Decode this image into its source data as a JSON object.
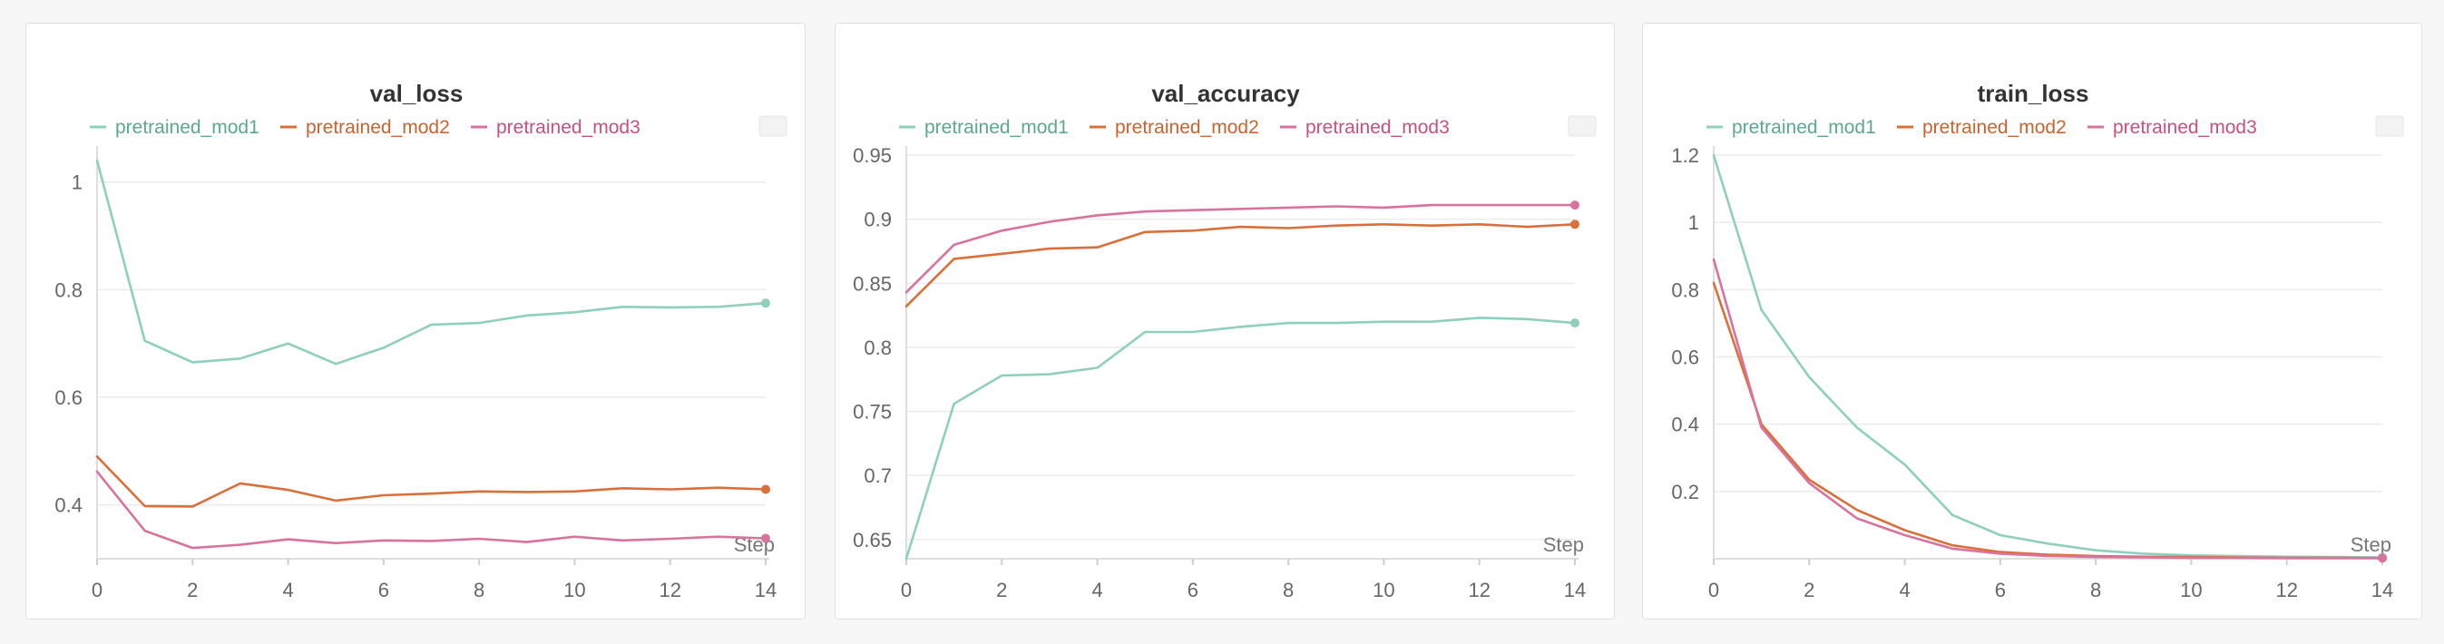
{
  "colors": {
    "pretrained_mod1": "#8fcfbd",
    "pretrained_mod2": "#d9703a",
    "pretrained_mod3": "#d9739d"
  },
  "legend_text_colors": {
    "pretrained_mod1": "#5ba88f",
    "pretrained_mod2": "#c7642f",
    "pretrained_mod3": "#c6517f"
  },
  "chart_data": [
    {
      "type": "line",
      "title": "val_loss",
      "xlabel": "Step",
      "xlim": [
        0,
        14
      ],
      "ylim": [
        0.3,
        1.05
      ],
      "xticks": [
        0,
        2,
        4,
        6,
        8,
        10,
        12,
        14
      ],
      "yticks": [
        0.4,
        0.6,
        0.8,
        1
      ],
      "ytick_labels": [
        "0.4",
        "0.6",
        "0.8",
        "1"
      ],
      "grid": true,
      "legend": "top",
      "x": [
        0,
        1,
        2,
        3,
        4,
        5,
        6,
        7,
        8,
        9,
        10,
        11,
        12,
        13,
        14
      ],
      "series": [
        {
          "name": "pretrained_mod1",
          "values": [
            1.04,
            0.705,
            0.665,
            0.672,
            0.7,
            0.662,
            0.692,
            0.735,
            0.738,
            0.752,
            0.758,
            0.768,
            0.767,
            0.768,
            0.775
          ]
        },
        {
          "name": "pretrained_mod2",
          "values": [
            0.49,
            0.398,
            0.397,
            0.44,
            0.428,
            0.408,
            0.418,
            0.421,
            0.425,
            0.424,
            0.425,
            0.431,
            0.429,
            0.432,
            0.429
          ]
        },
        {
          "name": "pretrained_mod3",
          "values": [
            0.462,
            0.352,
            0.32,
            0.326,
            0.336,
            0.329,
            0.334,
            0.333,
            0.337,
            0.331,
            0.341,
            0.334,
            0.337,
            0.341,
            0.338
          ]
        }
      ]
    },
    {
      "type": "line",
      "title": "val_accuracy",
      "xlabel": "Step",
      "xlim": [
        0,
        14
      ],
      "ylim": [
        0.635,
        0.95
      ],
      "xticks": [
        0,
        2,
        4,
        6,
        8,
        10,
        12,
        14
      ],
      "yticks": [
        0.65,
        0.7,
        0.75,
        0.8,
        0.85,
        0.9,
        0.95
      ],
      "ytick_labels": [
        "0.65",
        "0.7",
        "0.75",
        "0.8",
        "0.85",
        "0.9",
        "0.95"
      ],
      "grid": true,
      "legend": "top",
      "x": [
        0,
        1,
        2,
        3,
        4,
        5,
        6,
        7,
        8,
        9,
        10,
        11,
        12,
        13,
        14
      ],
      "series": [
        {
          "name": "pretrained_mod1",
          "values": [
            0.635,
            0.756,
            0.778,
            0.779,
            0.784,
            0.812,
            0.812,
            0.816,
            0.819,
            0.819,
            0.82,
            0.82,
            0.823,
            0.822,
            0.819
          ]
        },
        {
          "name": "pretrained_mod2",
          "values": [
            0.832,
            0.869,
            0.873,
            0.877,
            0.878,
            0.89,
            0.891,
            0.894,
            0.893,
            0.895,
            0.896,
            0.895,
            0.896,
            0.894,
            0.896
          ]
        },
        {
          "name": "pretrained_mod3",
          "values": [
            0.843,
            0.88,
            0.891,
            0.898,
            0.903,
            0.906,
            0.907,
            0.908,
            0.909,
            0.91,
            0.909,
            0.911,
            0.911,
            0.911,
            0.911
          ]
        }
      ]
    },
    {
      "type": "line",
      "title": "train_loss",
      "xlabel": "Step",
      "xlim": [
        0,
        14
      ],
      "ylim": [
        0,
        1.2
      ],
      "xticks": [
        0,
        2,
        4,
        6,
        8,
        10,
        12,
        14
      ],
      "yticks": [
        0.2,
        0.4,
        0.6,
        0.8,
        1,
        1.2
      ],
      "ytick_labels": [
        "0.2",
        "0.4",
        "0.6",
        "0.8",
        "1",
        "1.2"
      ],
      "grid": true,
      "legend": "top",
      "x": [
        0,
        1,
        2,
        3,
        4,
        5,
        6,
        7,
        8,
        9,
        10,
        11,
        12,
        13,
        14
      ],
      "series": [
        {
          "name": "pretrained_mod1",
          "values": [
            1.2,
            0.74,
            0.54,
            0.39,
            0.28,
            0.13,
            0.07,
            0.045,
            0.025,
            0.015,
            0.01,
            0.008,
            0.006,
            0.005,
            0.004
          ]
        },
        {
          "name": "pretrained_mod2",
          "values": [
            0.82,
            0.4,
            0.235,
            0.145,
            0.085,
            0.04,
            0.02,
            0.012,
            0.008,
            0.006,
            0.005,
            0.004,
            0.003,
            0.003,
            0.002
          ]
        },
        {
          "name": "pretrained_mod3",
          "values": [
            0.89,
            0.39,
            0.225,
            0.12,
            0.07,
            0.03,
            0.015,
            0.008,
            0.005,
            0.004,
            0.003,
            0.003,
            0.002,
            0.002,
            0.002
          ]
        }
      ]
    }
  ]
}
